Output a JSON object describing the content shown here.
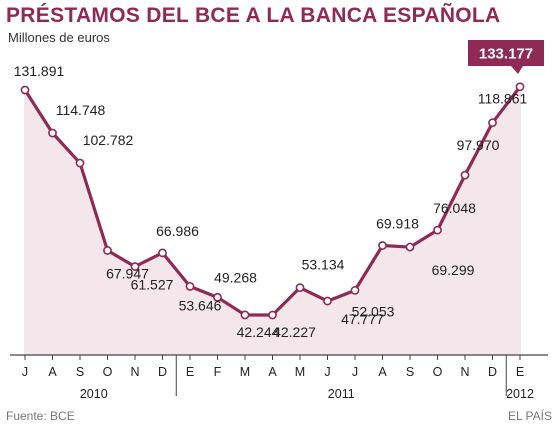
{
  "title": "PRÉSTAMOS DEL BCE A LA BANCA ESPAÑOLA",
  "subtitle": "Millones de euros",
  "source": "Fuente: BCE",
  "credit": "EL PAÍS",
  "colors": {
    "accent": "#8e2a55",
    "area": "#f3e7eb"
  },
  "chart_data": {
    "type": "line",
    "title": "PRÉSTAMOS DEL BCE A LA BANCA ESPAÑOLA",
    "ylabel": "Millones de euros",
    "categories": [
      "J",
      "A",
      "S",
      "O",
      "N",
      "D",
      "E",
      "F",
      "M",
      "A",
      "M",
      "J",
      "J",
      "A",
      "S",
      "O",
      "N",
      "D",
      "E"
    ],
    "years": [
      {
        "label": "2010",
        "from": 0,
        "to": 5
      },
      {
        "label": "2011",
        "from": 6,
        "to": 17
      },
      {
        "label": "2012",
        "from": 18,
        "to": 18
      }
    ],
    "values": [
      131891,
      114748,
      102782,
      67947,
      61527,
      66986,
      53646,
      49268,
      42244,
      42227,
      53134,
      47777,
      52053,
      69918,
      69299,
      76048,
      97970,
      118861,
      133177
    ],
    "labels": [
      "131.891",
      "114.748",
      "102.782",
      "67.947",
      "61.527",
      "66.986",
      "53.646",
      "49.268",
      "42.244",
      "42.227",
      "53.134",
      "47.777",
      "52.053",
      "69.918",
      "69.299",
      "76.048",
      "97.970",
      "118.861",
      "133.177"
    ],
    "highlight_index": 18
  }
}
